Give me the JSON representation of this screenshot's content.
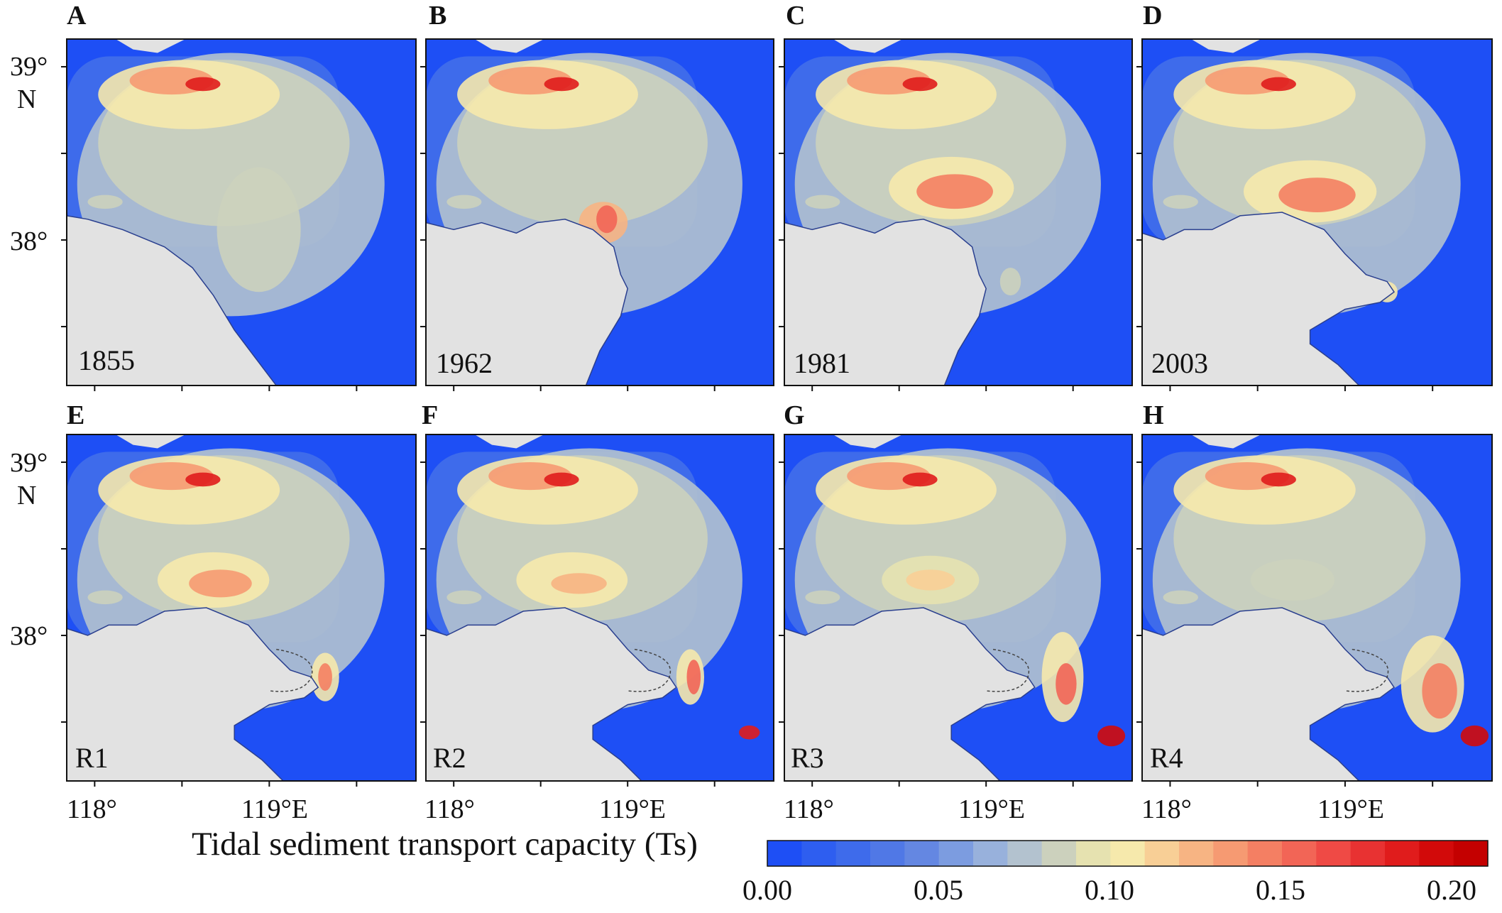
{
  "figure": {
    "panels": [
      {
        "letter": "A",
        "label": "1855",
        "shoreline": "open",
        "reclaim": false
      },
      {
        "letter": "B",
        "label": "1962",
        "shoreline": "spit",
        "reclaim": false
      },
      {
        "letter": "C",
        "label": "1981",
        "shoreline": "spit",
        "reclaim": false
      },
      {
        "letter": "D",
        "label": "2003",
        "shoreline": "lobe",
        "reclaim": false
      },
      {
        "letter": "E",
        "label": "R1",
        "shoreline": "lobe",
        "reclaim": true
      },
      {
        "letter": "F",
        "label": "R2",
        "shoreline": "lobe",
        "reclaim": true
      },
      {
        "letter": "G",
        "label": "R3",
        "shoreline": "lobe",
        "reclaim": true
      },
      {
        "letter": "H",
        "label": "R4",
        "shoreline": "lobe",
        "reclaim": true
      }
    ],
    "lat_labels": {
      "deg39": "39°",
      "north": "N",
      "deg38": "38°"
    },
    "lon_labels": {
      "deg118": "118°",
      "deg119": "119°E"
    },
    "colorbar": {
      "title": "Tidal sediment transport capacity (Ts)",
      "ticks": [
        "0.00",
        "0.05",
        "0.10",
        "0.15",
        "0.20"
      ],
      "min": 0.0,
      "max": 0.21,
      "colors": [
        "#1e4ff5",
        "#2e5ef0",
        "#3e6beb",
        "#5078e6",
        "#6487e2",
        "#7c9ce0",
        "#98b1dc",
        "#b3c2cf",
        "#ccd1bd",
        "#e6e2b0",
        "#f6e9ac",
        "#f8cf96",
        "#f7b483",
        "#f69a72",
        "#f47f63",
        "#f26556",
        "#ef4a45",
        "#e83232",
        "#e01c1c",
        "#d20a0a",
        "#c40000"
      ]
    },
    "colors": {
      "land": "#e2e2e2",
      "sea": "#2156f2",
      "frame": "#111111"
    }
  }
}
